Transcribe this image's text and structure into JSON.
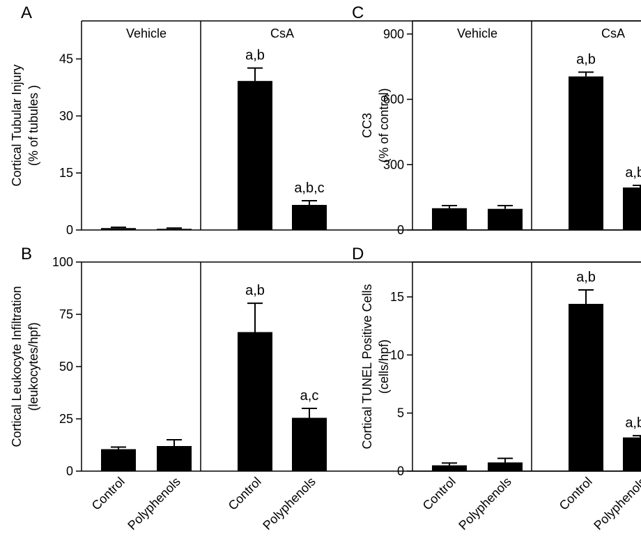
{
  "figure": {
    "width": 920,
    "height": 782
  },
  "chart_data": [
    {
      "panel": "A",
      "type": "bar",
      "groups": [
        "Vehicle",
        "CsA"
      ],
      "categories": [
        "Control",
        "Polyphenols",
        "Control",
        "Polyphenols"
      ],
      "values": [
        0.5,
        0.3,
        39.2,
        6.6
      ],
      "errors": [
        0.2,
        0.2,
        3.4,
        1.1
      ],
      "annotations": [
        "",
        "",
        "a,b",
        "a,b,c"
      ],
      "ylabel": [
        "Cortical Tubular Injury",
        "(% of tubules )"
      ],
      "ylim": [
        0,
        55
      ],
      "yticks": [
        0,
        15,
        30,
        45
      ],
      "show_xlabels": false
    },
    {
      "panel": "B",
      "type": "bar",
      "groups": [
        "",
        ""
      ],
      "categories": [
        "Control",
        "Polyphenols",
        "Control",
        "Polyphenols"
      ],
      "values": [
        10.5,
        12.0,
        66.5,
        25.5
      ],
      "errors": [
        1.0,
        3.0,
        13.8,
        4.5
      ],
      "annotations": [
        "",
        "",
        "a,b",
        "a,c"
      ],
      "ylabel": [
        "Cortical Leukocyte Infiltration",
        "(leukocytes/hpf)"
      ],
      "ylim": [
        0,
        100
      ],
      "yticks": [
        0,
        25,
        50,
        75,
        100
      ],
      "show_xlabels": true
    },
    {
      "panel": "C",
      "type": "bar",
      "groups": [
        "Vehicle",
        "CsA"
      ],
      "categories": [
        "Control",
        "Polyphenols",
        "Control",
        "Polyphenols"
      ],
      "values": [
        100,
        97,
        705,
        195
      ],
      "errors": [
        12,
        15,
        20,
        10
      ],
      "annotations": [
        "",
        "",
        "a,b",
        "a,b,c"
      ],
      "ylabel": [
        "CC3",
        "(% of control)"
      ],
      "ylim": [
        0,
        960
      ],
      "yticks": [
        0,
        300,
        600,
        900
      ],
      "show_xlabels": false
    },
    {
      "panel": "D",
      "type": "bar",
      "groups": [
        "",
        ""
      ],
      "categories": [
        "Control",
        "Polyphenols",
        "Control",
        "Polyphenols"
      ],
      "values": [
        0.5,
        0.75,
        14.4,
        2.9
      ],
      "errors": [
        0.2,
        0.35,
        1.2,
        0.15
      ],
      "annotations": [
        "",
        "",
        "a,b",
        "a,b,c"
      ],
      "ylabel": [
        "Cortical TUNEL Positive Cells",
        "(cells/hpf)"
      ],
      "ylim": [
        0,
        18
      ],
      "yticks": [
        0,
        5,
        10,
        15
      ],
      "show_xlabels": true
    }
  ]
}
